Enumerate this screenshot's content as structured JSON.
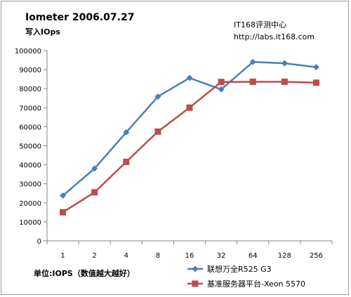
{
  "chart_data": {
    "type": "line",
    "title": "Iometer 2006.07.27",
    "subtitle": "写入IOps",
    "source": [
      "IT168评测中心",
      "http://labs.it168.com"
    ],
    "unit_note": "单位:IOPS（数值越大越好）",
    "categories": [
      "1",
      "2",
      "4",
      "8",
      "16",
      "32",
      "64",
      "128",
      "256"
    ],
    "yticks": [
      "0",
      "10000",
      "20000",
      "30000",
      "40000",
      "50000",
      "60000",
      "70000",
      "80000",
      "90000",
      "100000"
    ],
    "ylim": [
      0,
      100000
    ],
    "grid": false,
    "legend_position": "bottom-right",
    "series": [
      {
        "name": "联想万全R525 G3",
        "color": "#4a7ebb",
        "marker": "diamond",
        "values": [
          23800,
          38000,
          57000,
          75800,
          85600,
          79600,
          94000,
          93300,
          91300
        ]
      },
      {
        "name": "基准服务器平台-Xeon 5570",
        "color": "#be4b48",
        "marker": "square",
        "values": [
          15000,
          25500,
          41500,
          57400,
          70000,
          83500,
          83600,
          83600,
          83100
        ]
      }
    ]
  }
}
